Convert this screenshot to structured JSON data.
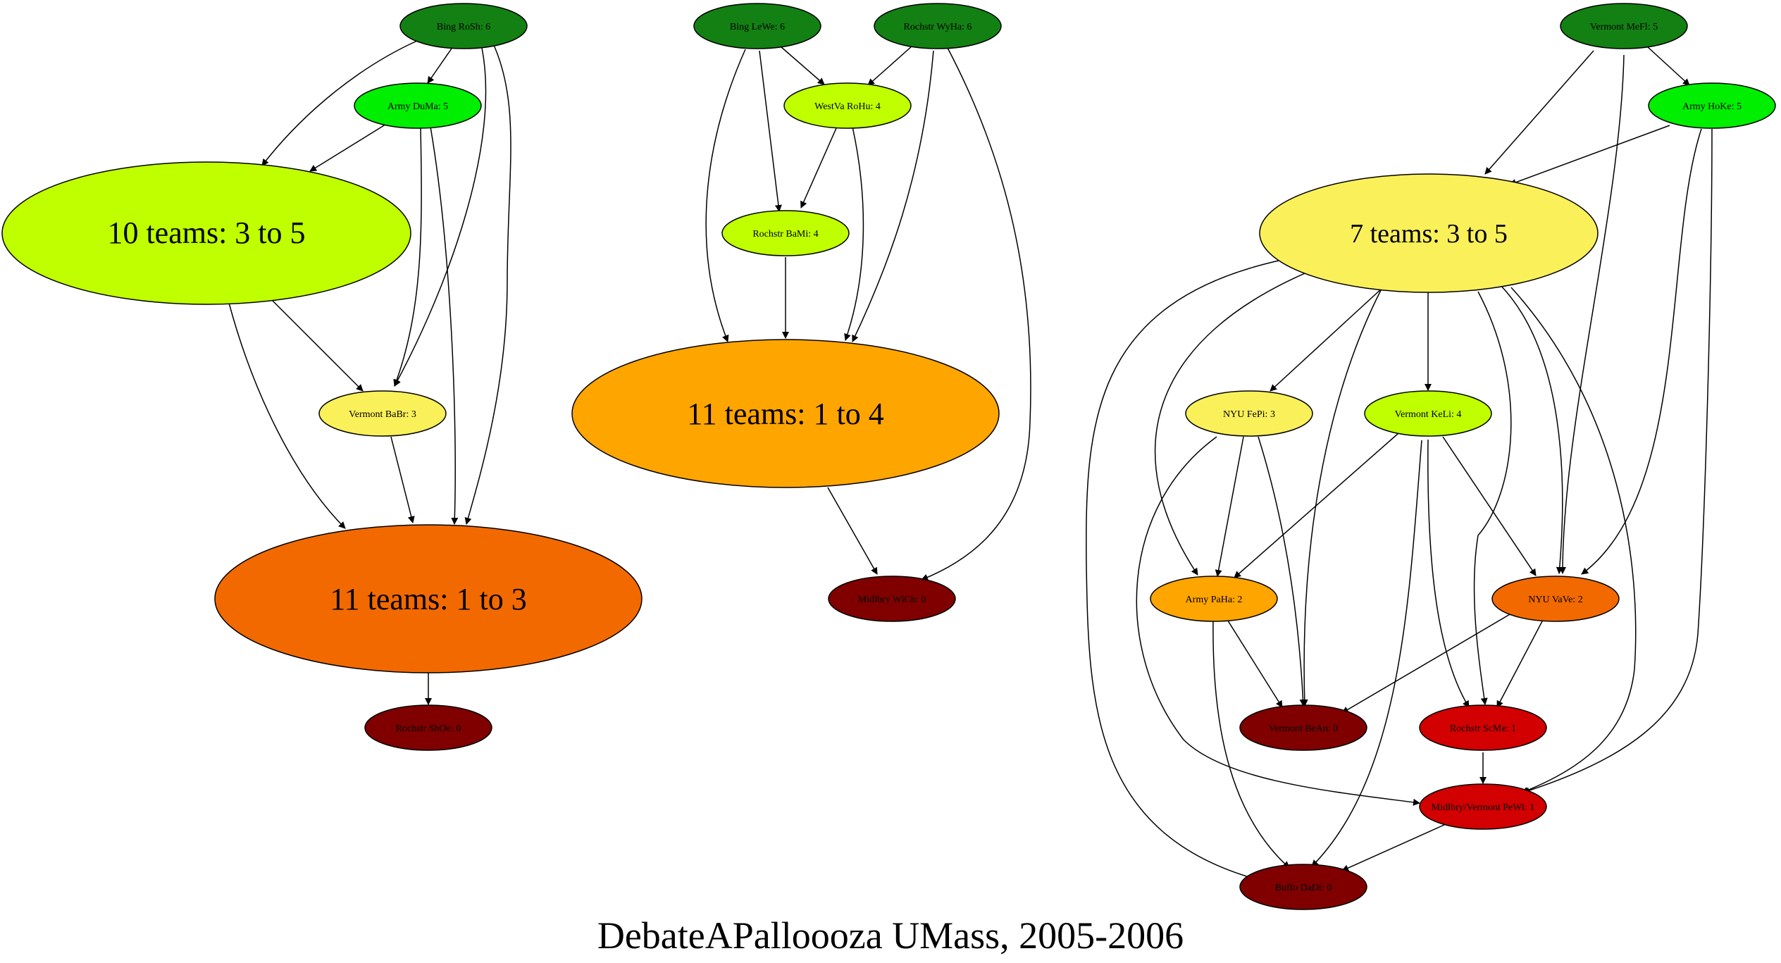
{
  "title": "DebateAPalloooza UMass, 2005-2006",
  "colors": {
    "score6": "#138013",
    "score5": "#00ee00",
    "score4": "#bfff00",
    "score3": "#faf05a",
    "group_1_to_4": "#ffa500",
    "group_1_to_3": "#f26900",
    "score2_nyu": "#f26900",
    "score2_army": "#ffa500",
    "score1": "#d20000",
    "score0": "#800000"
  },
  "nodes": {
    "bing_rosh": "Bing RoSh: 6",
    "army_duma": "Army DuMa: 5",
    "group_10": "10 teams: 3 to 5",
    "vermont_babr": "Vermont BaBr: 3",
    "group_11a": "11 teams: 1 to 3",
    "rochstr_shoe": "Rochstr ShOe: 0",
    "bing_lewe": "Bing LeWe: 6",
    "rochstr_wyha": "Rochstr WyHa: 6",
    "westva_rohu": "WestVa RoHu: 4",
    "rochstr_bami": "Rochstr BaMi: 4",
    "group_11b": "11 teams: 1 to 4",
    "midlbry_wich": "Midlbry WiCh: 0",
    "vermont_mefl": "Vermont MeFl: 5",
    "army_hoke": "Army HoKe: 5",
    "group_7": "7 teams: 3 to 5",
    "nyu_fepi": "NYU FePi: 3",
    "vermont_keli": "Vermont KeLi: 4",
    "army_paha": "Army PaHa: 2",
    "nyu_vave": "NYU VaVe: 2",
    "vermont_bean": "Vermont BeAn: 0",
    "rochstr_scme": "Rochstr ScMe: 1",
    "midlbry_vermont_pewi": "Midlbry/Vermont PeWi: 1",
    "buffo_dadi": "Buffo DaDi: 0"
  }
}
